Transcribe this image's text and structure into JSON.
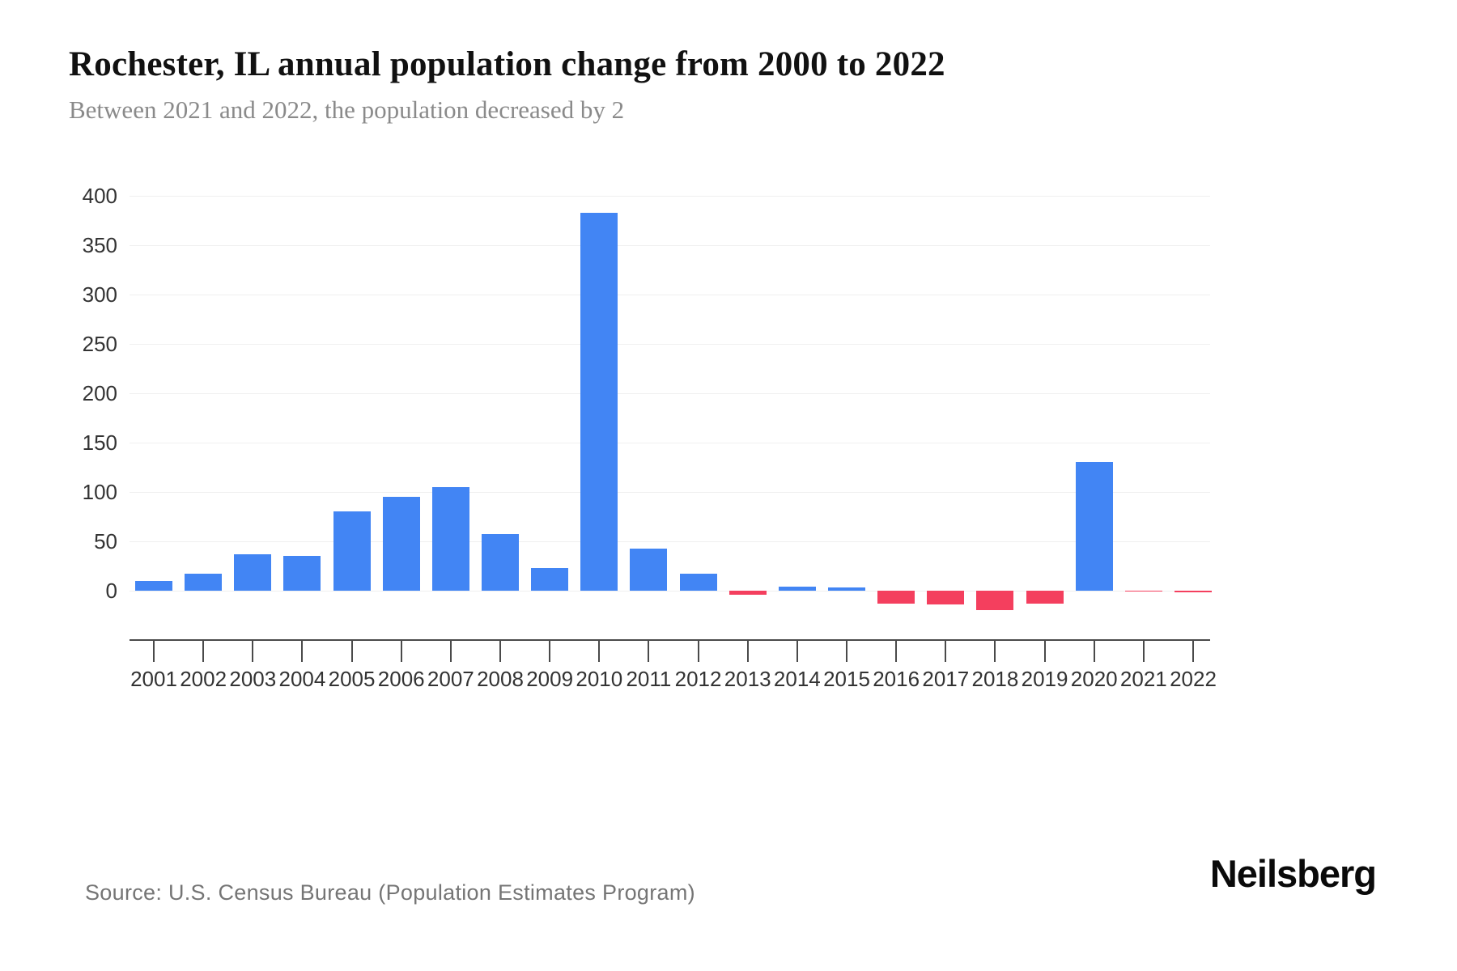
{
  "page": {
    "title": "Rochester, IL annual population change from 2000 to 2022",
    "subtitle": "Between 2021 and 2022, the population decreased by 2",
    "source": "Source: U.S. Census Bureau (Population Estimates Program)",
    "brand": "Neilsberg"
  },
  "chart_data": {
    "type": "bar",
    "title": "Rochester, IL annual population change from 2000 to 2022",
    "subtitle": "Between 2021 and 2022, the population decreased by 2",
    "categories": [
      "2001",
      "2002",
      "2003",
      "2004",
      "2005",
      "2006",
      "2007",
      "2008",
      "2009",
      "2010",
      "2011",
      "2012",
      "2013",
      "2014",
      "2015",
      "2016",
      "2017",
      "2018",
      "2019",
      "2020",
      "2021",
      "2022"
    ],
    "values": [
      10,
      17,
      37,
      35,
      80,
      95,
      105,
      57,
      23,
      383,
      43,
      17,
      -4,
      4,
      3,
      -13,
      -14,
      -20,
      -13,
      130,
      -1,
      -2
    ],
    "xlabel": "",
    "ylabel": "",
    "y_ticks": [
      0,
      50,
      100,
      150,
      200,
      250,
      300,
      350,
      400
    ],
    "ylim": [
      -25,
      400
    ],
    "grid": true,
    "legend": false,
    "colors": {
      "positive": "#4285F4",
      "negative": "#F43F5E",
      "gridline": "#f0f0f0",
      "axis": "#4a4a4a"
    }
  }
}
